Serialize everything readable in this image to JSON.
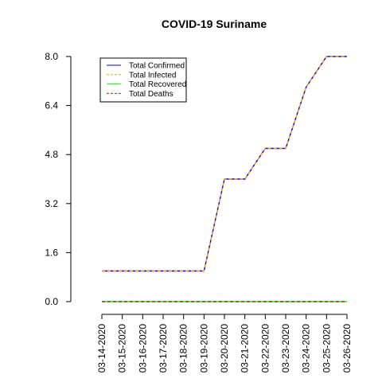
{
  "chart_data": {
    "type": "line",
    "title": "COVID-19 Suriname",
    "xlabel": "",
    "ylabel": "",
    "categories": [
      "03-14-2020",
      "03-15-2020",
      "03-16-2020",
      "03-17-2020",
      "03-18-2020",
      "03-19-2020",
      "03-20-2020",
      "03-21-2020",
      "03-22-2020",
      "03-23-2020",
      "03-24-2020",
      "03-25-2020",
      "03-26-2020"
    ],
    "ylim": [
      0,
      8
    ],
    "y_ticks": [
      "0.0",
      "1.6",
      "3.2",
      "4.8",
      "6.4",
      "8.0"
    ],
    "legend_position": "top-left",
    "grid": false,
    "series": [
      {
        "name": "Total Confirmed",
        "color": "#0000ff",
        "dash": "solid",
        "values": [
          1,
          1,
          1,
          1,
          1,
          1,
          4,
          4,
          5,
          5,
          7,
          8,
          8
        ]
      },
      {
        "name": "Total Infected",
        "color": "#ffa500",
        "dash": "dashed",
        "values": [
          1,
          1,
          1,
          1,
          1,
          1,
          4,
          4,
          5,
          5,
          7,
          8,
          8
        ]
      },
      {
        "name": "Total Recovered",
        "color": "#00ff00",
        "dash": "solid",
        "values": [
          0,
          0,
          0,
          0,
          0,
          0,
          0,
          0,
          0,
          0,
          0,
          0,
          0
        ]
      },
      {
        "name": "Total Deaths",
        "color": "#a52a2a",
        "dash": "dashed",
        "values": [
          0,
          0,
          0,
          0,
          0,
          0,
          0,
          0,
          0,
          0,
          0,
          0,
          0
        ]
      }
    ]
  }
}
